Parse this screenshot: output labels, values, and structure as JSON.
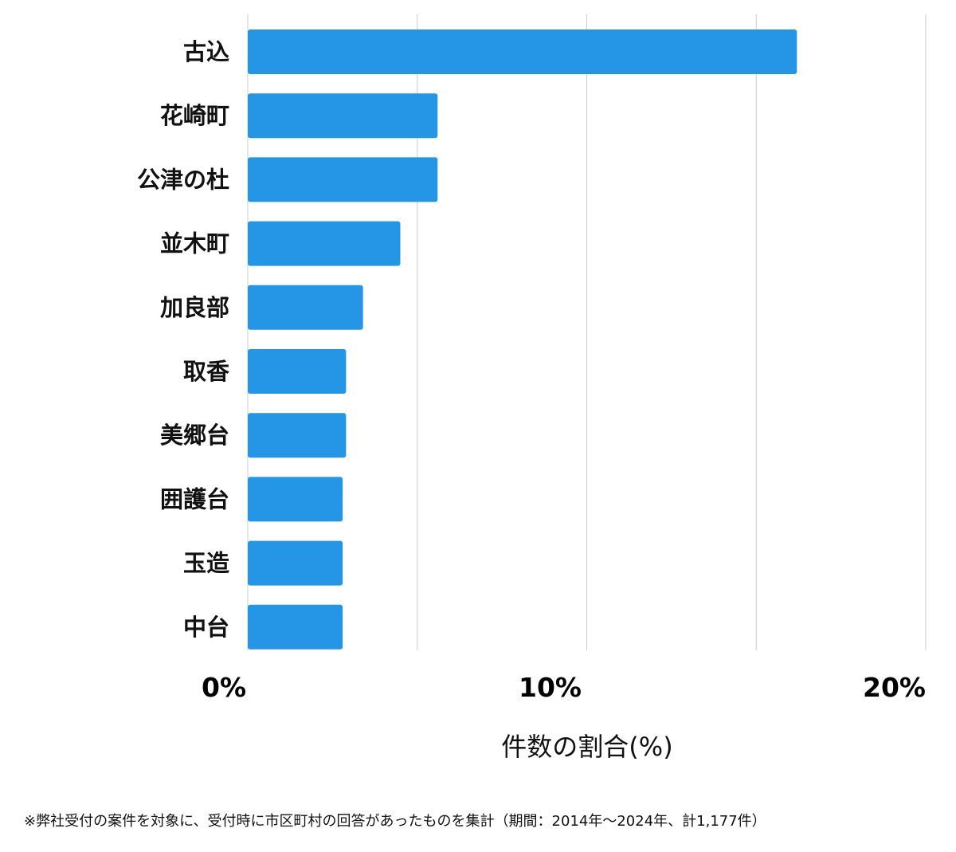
{
  "chart_data": {
    "type": "bar",
    "orientation": "horizontal",
    "categories": [
      "古込",
      "花崎町",
      "公津の杜",
      "並木町",
      "加良部",
      "取香",
      "美郷台",
      "囲護台",
      "玉造",
      "中台"
    ],
    "values": [
      16.2,
      5.6,
      5.6,
      4.5,
      3.4,
      2.9,
      2.9,
      2.8,
      2.8,
      2.8
    ],
    "xlim": [
      0,
      20
    ],
    "ticks": [
      {
        "value": 0,
        "label": "0%"
      },
      {
        "value": 10,
        "label": "10%"
      },
      {
        "value": 20,
        "label": "20%"
      }
    ],
    "gridlines": [
      0,
      5,
      10,
      15,
      20
    ],
    "xlabel": "件数の割合(%)",
    "grid": true,
    "bar_color": "#2595e6",
    "grid_color": "#cccccc"
  },
  "footnote": "※弊社受付の案件を対象に、受付時に市区町村の回答があったものを集計（期間：2014年〜2024年、計1,177件）"
}
